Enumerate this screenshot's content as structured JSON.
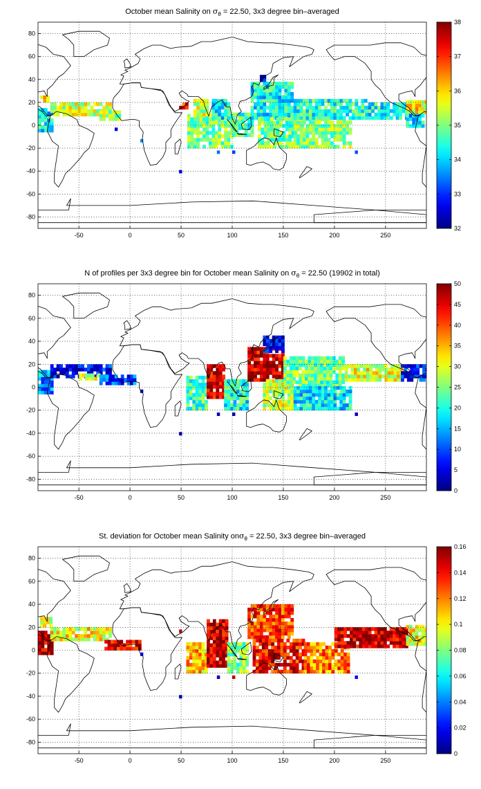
{
  "chart_data": [
    {
      "type": "heatmap",
      "title_parts": {
        "pre": "October mean Salinity on ",
        "sigma": "σ",
        "sub": "θ",
        "post": " = 22.50, 3x3 degree bin–averaged"
      },
      "xlim": [
        -90,
        290
      ],
      "ylim": [
        -90,
        90
      ],
      "x_ticks": [
        -50,
        0,
        50,
        100,
        150,
        200,
        250
      ],
      "y_ticks": [
        -80,
        -60,
        -40,
        -20,
        0,
        20,
        40,
        60,
        80
      ],
      "colorbar": {
        "min": 32,
        "max": 38,
        "ticks": [
          32,
          33,
          34,
          35,
          36,
          37,
          38
        ]
      },
      "grid": true,
      "colormap": "jet",
      "regions": [
        {
          "lon": [
            -90,
            -76
          ],
          "lat": [
            -6,
            14
          ],
          "value": 34.2
        },
        {
          "lon": [
            -78,
            -20
          ],
          "lat": [
            8,
            20
          ],
          "value": 35.4
        },
        {
          "lon": [
            -30,
            -10
          ],
          "lat": [
            4,
            12
          ],
          "value": 35.2
        },
        {
          "lon": [
            -88,
            -80
          ],
          "lat": [
            20,
            26
          ],
          "value": 35.7
        },
        {
          "lon": [
            48,
            56
          ],
          "lat": [
            14,
            18
          ],
          "value": 37.1
        },
        {
          "lon": [
            56,
            100
          ],
          "lat": [
            -20,
            8
          ],
          "value": 35.0
        },
        {
          "lon": [
            62,
            75
          ],
          "lat": [
            8,
            22
          ],
          "value": 35.4
        },
        {
          "lon": [
            80,
            98
          ],
          "lat": [
            5,
            22
          ],
          "value": 34.3
        },
        {
          "lon": [
            100,
            120
          ],
          "lat": [
            -10,
            10
          ],
          "value": 34.6
        },
        {
          "lon": [
            118,
            160
          ],
          "lat": [
            5,
            38
          ],
          "value": 34.3
        },
        {
          "lon": [
            125,
            170
          ],
          "lat": [
            -20,
            5
          ],
          "value": 34.9
        },
        {
          "lon": [
            160,
            215
          ],
          "lat": [
            -20,
            5
          ],
          "value": 35.1
        },
        {
          "lon": [
            160,
            230
          ],
          "lat": [
            5,
            22
          ],
          "value": 34.5
        },
        {
          "lon": [
            230,
            270
          ],
          "lat": [
            5,
            18
          ],
          "value": 34.3
        },
        {
          "lon": [
            270,
            290
          ],
          "lat": [
            10,
            22
          ],
          "value": 35.8
        },
        {
          "lon": [
            270,
            288
          ],
          "lat": [
            -2,
            8
          ],
          "value": 34.0
        },
        {
          "lon": [
            127,
            133
          ],
          "lat": [
            38,
            44
          ],
          "value": 32.9
        }
      ],
      "points": [
        {
          "lon": -15,
          "lat": -5,
          "value": 32.5
        },
        {
          "lon": 48,
          "lat": -42,
          "value": 32.6
        },
        {
          "lon": 85,
          "lat": -25,
          "value": 33.4
        },
        {
          "lon": 100,
          "lat": -25,
          "value": 33.1
        },
        {
          "lon": 220,
          "lat": -25,
          "value": 33.2
        },
        {
          "lon": 10,
          "lat": -15,
          "value": 33.6
        }
      ]
    },
    {
      "type": "heatmap",
      "title_parts": {
        "pre": "N of profiles per 3x3 degree bin for October mean Salinity on ",
        "sigma": "σ",
        "sub": "θ",
        "post": " = 22.50 (19902 in total)"
      },
      "xlim": [
        -90,
        290
      ],
      "ylim": [
        -90,
        90
      ],
      "x_ticks": [
        -50,
        0,
        50,
        100,
        150,
        200,
        250
      ],
      "y_ticks": [
        -80,
        -60,
        -40,
        -20,
        0,
        20,
        40,
        60,
        80
      ],
      "colorbar": {
        "min": 0,
        "max": 50,
        "ticks": [
          0,
          5,
          10,
          15,
          20,
          25,
          30,
          35,
          40,
          45,
          50
        ]
      },
      "grid": true,
      "colormap": "jet",
      "regions": [
        {
          "lon": [
            -90,
            -76
          ],
          "lat": [
            -6,
            14
          ],
          "value": 14
        },
        {
          "lon": [
            -78,
            -20
          ],
          "lat": [
            8,
            20
          ],
          "value": 6
        },
        {
          "lon": [
            -50,
            -30
          ],
          "lat": [
            6,
            12
          ],
          "value": 30
        },
        {
          "lon": [
            -30,
            5
          ],
          "lat": [
            2,
            10
          ],
          "value": 10
        },
        {
          "lon": [
            55,
            75
          ],
          "lat": [
            -20,
            8
          ],
          "value": 22
        },
        {
          "lon": [
            75,
            92
          ],
          "lat": [
            -10,
            20
          ],
          "value": 46
        },
        {
          "lon": [
            92,
            115
          ],
          "lat": [
            -20,
            5
          ],
          "value": 20
        },
        {
          "lon": [
            115,
            150
          ],
          "lat": [
            5,
            35
          ],
          "value": 46
        },
        {
          "lon": [
            130,
            160
          ],
          "lat": [
            -20,
            5
          ],
          "value": 28
        },
        {
          "lon": [
            150,
            210
          ],
          "lat": [
            0,
            25
          ],
          "value": 24
        },
        {
          "lon": [
            160,
            215
          ],
          "lat": [
            -20,
            0
          ],
          "value": 18
        },
        {
          "lon": [
            210,
            265
          ],
          "lat": [
            5,
            18
          ],
          "value": 30
        },
        {
          "lon": [
            265,
            290
          ],
          "lat": [
            5,
            20
          ],
          "value": 8
        },
        {
          "lon": [
            130,
            150
          ],
          "lat": [
            30,
            44
          ],
          "value": 6
        }
      ],
      "points": [
        {
          "lon": 48,
          "lat": -42,
          "value": 2
        },
        {
          "lon": 85,
          "lat": -25,
          "value": 3
        },
        {
          "lon": 100,
          "lat": -25,
          "value": 2
        },
        {
          "lon": 220,
          "lat": -25,
          "value": 3
        },
        {
          "lon": 10,
          "lat": -5,
          "value": 2
        }
      ]
    },
    {
      "type": "heatmap",
      "title_parts": {
        "pre": "St. deviation for October mean Salinity on",
        "sigma": "σ",
        "sub": "θ",
        "post": " = 22.50, 3x3 degree bin–averaged"
      },
      "xlim": [
        -90,
        290
      ],
      "ylim": [
        -90,
        90
      ],
      "x_ticks": [
        -50,
        0,
        50,
        100,
        150,
        200,
        250
      ],
      "y_ticks": [
        -80,
        -60,
        -40,
        -20,
        0,
        20,
        40,
        60,
        80
      ],
      "colorbar": {
        "min": 0,
        "max": 0.16,
        "ticks": [
          0,
          0.02,
          0.04,
          0.06,
          0.08,
          0.1,
          0.12,
          0.14,
          0.16
        ]
      },
      "grid": true,
      "colormap": "jet",
      "regions": [
        {
          "lon": [
            -90,
            -76
          ],
          "lat": [
            -4,
            16
          ],
          "value": 0.15
        },
        {
          "lon": [
            -78,
            -20
          ],
          "lat": [
            8,
            18
          ],
          "value": 0.1
        },
        {
          "lon": [
            -25,
            10
          ],
          "lat": [
            0,
            8
          ],
          "value": 0.14
        },
        {
          "lon": [
            -88,
            -78
          ],
          "lat": [
            20,
            28
          ],
          "value": 0.09
        },
        {
          "lon": [
            55,
            75
          ],
          "lat": [
            -20,
            5
          ],
          "value": 0.11
        },
        {
          "lon": [
            75,
            95
          ],
          "lat": [
            -15,
            25
          ],
          "value": 0.15
        },
        {
          "lon": [
            95,
            115
          ],
          "lat": [
            -20,
            5
          ],
          "value": 0.08
        },
        {
          "lon": [
            115,
            160
          ],
          "lat": [
            10,
            40
          ],
          "value": 0.13
        },
        {
          "lon": [
            120,
            170
          ],
          "lat": [
            -20,
            10
          ],
          "value": 0.14
        },
        {
          "lon": [
            170,
            215
          ],
          "lat": [
            -20,
            5
          ],
          "value": 0.12
        },
        {
          "lon": [
            200,
            270
          ],
          "lat": [
            2,
            18
          ],
          "value": 0.15
        },
        {
          "lon": [
            270,
            290
          ],
          "lat": [
            4,
            20
          ],
          "value": 0.1
        }
      ],
      "points": [
        {
          "lon": 48,
          "lat": -42,
          "value": 0.01
        },
        {
          "lon": 85,
          "lat": -25,
          "value": 0.01
        },
        {
          "lon": 100,
          "lat": -25,
          "value": 0.15
        },
        {
          "lon": 220,
          "lat": -25,
          "value": 0.02
        },
        {
          "lon": 10,
          "lat": -5,
          "value": 0.02
        },
        {
          "lon": 48,
          "lat": 15,
          "value": 0.15
        }
      ]
    }
  ]
}
